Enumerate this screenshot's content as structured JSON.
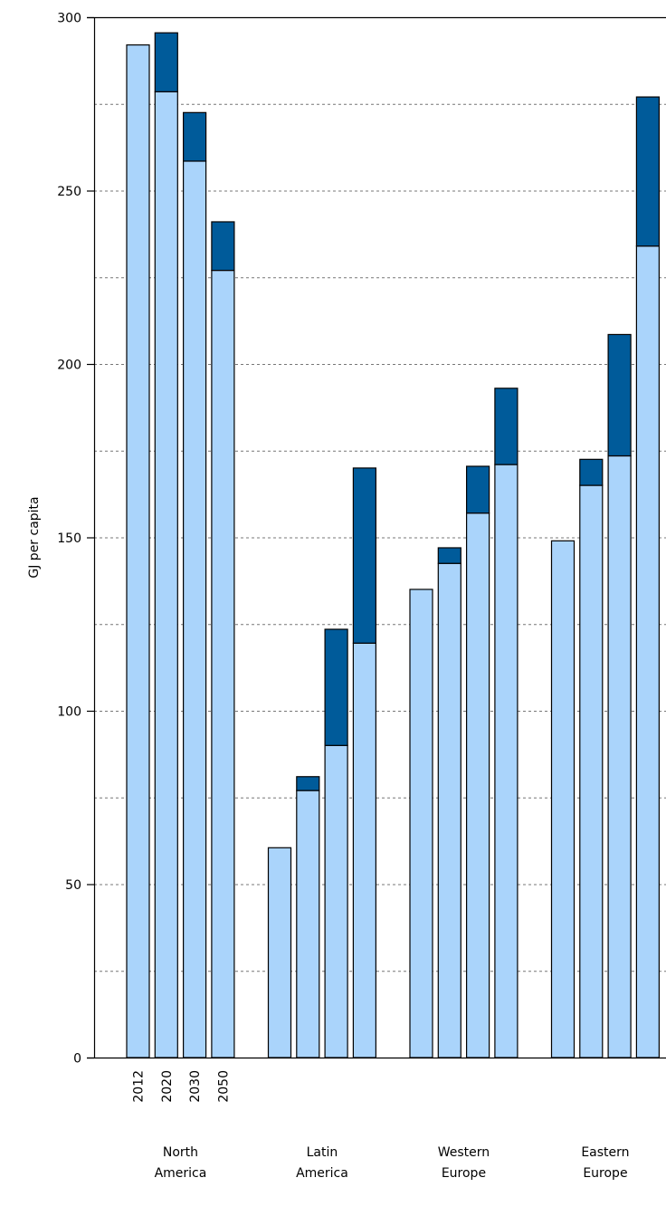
{
  "chart_data": {
    "type": "bar",
    "stacked": true,
    "ylabel": "GJ per capita",
    "xlabel": "",
    "ylim": [
      0,
      300
    ],
    "yticks": [
      0,
      50,
      100,
      150,
      200,
      250,
      300
    ],
    "grid": "dashed horizontal lines at 25-unit intervals",
    "legend": "none",
    "sub_categories": [
      "2012",
      "2020",
      "2030",
      "2050"
    ],
    "groups": [
      {
        "label_lines": [
          "North",
          "America"
        ],
        "base": [
          292,
          278.5,
          258.5,
          227
        ],
        "top": [
          0,
          17,
          14,
          14
        ]
      },
      {
        "label_lines": [
          "Latin",
          "America"
        ],
        "base": [
          60.5,
          77,
          90,
          119.5
        ],
        "top": [
          0,
          4,
          33.5,
          50.5
        ]
      },
      {
        "label_lines": [
          "Western",
          "Europe"
        ],
        "base": [
          135,
          142.5,
          157,
          171
        ],
        "top": [
          0,
          4.5,
          13.5,
          22
        ]
      },
      {
        "label_lines": [
          "Eastern",
          "Europe"
        ],
        "base": [
          149,
          165,
          173.5,
          234
        ],
        "top": [
          0,
          7.5,
          35,
          43
        ]
      }
    ],
    "colors": {
      "base": "#aad4fb",
      "top": "#005b9a",
      "outline": "#000000",
      "grid": "#777777"
    }
  }
}
